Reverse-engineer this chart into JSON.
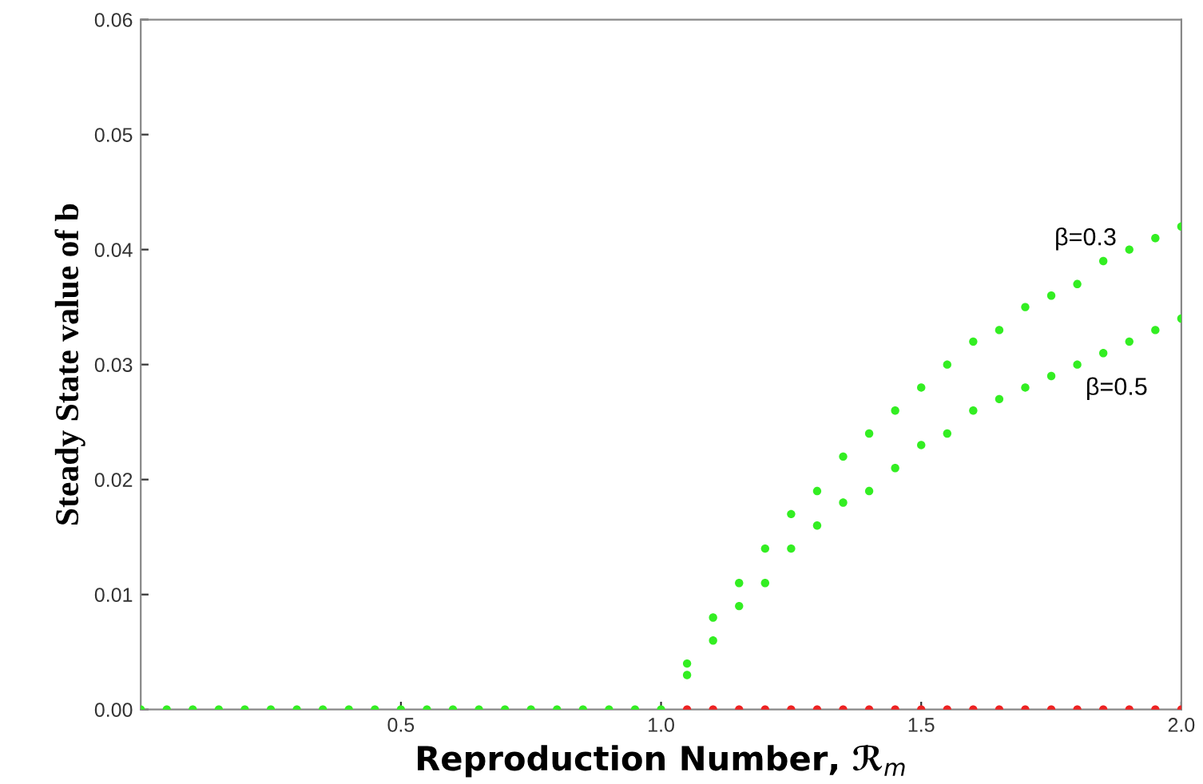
{
  "chart_data": {
    "type": "scatter",
    "xlabel": "Reproduction Number, ℛ$_{m}$",
    "ylabel": "Steady State value of b",
    "xlim": [
      0,
      2
    ],
    "ylim": [
      0,
      0.06
    ],
    "xticks": [
      0.5,
      {
        "value": 1.0,
        "label": "1.0"
      },
      1.5,
      {
        "value": 2.0,
        "label": "2.0"
      }
    ],
    "yticks": [
      {
        "value": 0,
        "label": "0.00"
      },
      {
        "value": 0.01,
        "label": "0.01"
      },
      {
        "value": 0.02,
        "label": "0.02"
      },
      {
        "value": 0.03,
        "label": "0.03"
      },
      {
        "value": 0.04,
        "label": "0.04"
      },
      {
        "value": 0.05,
        "label": "0.05"
      },
      {
        "value": 0.06,
        "label": "0.06"
      }
    ],
    "marker": "circle",
    "grid": false,
    "legend": false,
    "series": [
      {
        "color": "#33ee22",
        "x": [
          0.0,
          0.05,
          0.1,
          0.15,
          0.2,
          0.25,
          0.3,
          0.35,
          0.4,
          0.45,
          0.5,
          0.55,
          0.6,
          0.65,
          0.7,
          0.75,
          0.8,
          0.85,
          0.9,
          0.95,
          1.0
        ],
        "values": [
          0,
          0,
          0,
          0,
          0,
          0,
          0,
          0,
          0,
          0,
          0,
          0,
          0,
          0,
          0,
          0,
          0,
          0,
          0,
          0,
          0
        ]
      },
      {
        "color": "#ee2222",
        "x": [
          1.05,
          1.1,
          1.15,
          1.2,
          1.25,
          1.3,
          1.35,
          1.4,
          1.45,
          1.5,
          1.55,
          1.6,
          1.65,
          1.7,
          1.75,
          1.8,
          1.85,
          1.9,
          1.95,
          2.0
        ],
        "values": [
          0,
          0,
          0,
          0,
          0,
          0,
          0,
          0,
          0,
          0,
          0,
          0,
          0,
          0,
          0,
          0,
          0,
          0,
          0,
          0
        ]
      },
      {
        "name": "β=0.3",
        "color": "#33ee22",
        "x": [
          1.05,
          1.1,
          1.15,
          1.2,
          1.25,
          1.3,
          1.35,
          1.4,
          1.45,
          1.5,
          1.55,
          1.6,
          1.65,
          1.7,
          1.75,
          1.8,
          1.85,
          1.9,
          1.95,
          2.0
        ],
        "values": [
          0.004,
          0.008,
          0.011,
          0.014,
          0.017,
          0.019,
          0.022,
          0.024,
          0.026,
          0.028,
          0.03,
          0.032,
          0.033,
          0.035,
          0.036,
          0.037,
          0.039,
          0.04,
          0.041,
          0.042
        ]
      },
      {
        "name": "β=0.5",
        "color": "#33ee22",
        "x": [
          1.05,
          1.1,
          1.15,
          1.2,
          1.25,
          1.3,
          1.35,
          1.4,
          1.45,
          1.5,
          1.55,
          1.6,
          1.65,
          1.7,
          1.75,
          1.8,
          1.85,
          1.9,
          1.95,
          2.0
        ],
        "values": [
          0.003,
          0.006,
          0.009,
          0.011,
          0.014,
          0.016,
          0.018,
          0.019,
          0.021,
          0.023,
          0.024,
          0.026,
          0.027,
          0.028,
          0.029,
          0.03,
          0.031,
          0.032,
          0.033,
          0.034
        ]
      }
    ]
  }
}
